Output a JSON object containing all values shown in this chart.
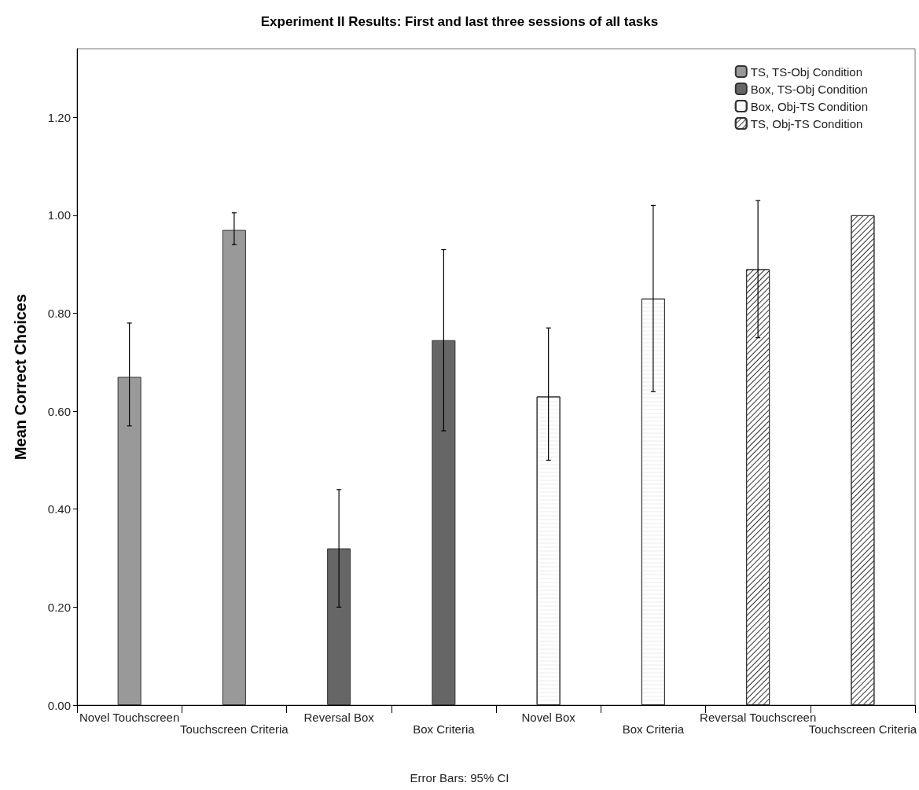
{
  "chart_data": {
    "type": "bar",
    "title": "Experiment II Results: First and last three sessions of all tasks",
    "ylabel": "Mean Correct Choices",
    "categories": [
      "Novel Touchscreen",
      "Touchscreen Criteria",
      "Reversal Box",
      "Box Criteria",
      "Novel Box",
      "Box Criteria",
      "Reversal Touchscreen",
      "Touchscreen Criteria"
    ],
    "series": [
      {
        "name": "TS, TS-Obj Condition",
        "color": "#999999",
        "values": [
          0.67,
          0.97,
          null,
          null,
          null,
          null,
          null,
          null
        ],
        "errors": [
          [
            0.57,
            0.78
          ],
          [
            0.94,
            1.005
          ],
          null,
          null,
          null,
          null,
          null,
          null
        ]
      },
      {
        "name": "Box, TS-Obj Condition",
        "color": "#666666",
        "values": [
          null,
          null,
          0.32,
          0.745,
          null,
          null,
          null,
          null
        ],
        "errors": [
          null,
          null,
          [
            0.2,
            0.44
          ],
          [
            0.56,
            0.93
          ],
          null,
          null,
          null,
          null
        ]
      },
      {
        "name": "Box, Obj-TS Condition",
        "color": "#ffffff",
        "values": [
          null,
          null,
          null,
          null,
          0.63,
          0.83,
          null,
          null
        ],
        "errors": [
          null,
          null,
          null,
          null,
          [
            0.5,
            0.77
          ],
          [
            0.64,
            1.02
          ],
          null,
          null
        ]
      },
      {
        "name": "TS, Obj-TS Condition",
        "color": "#ffffff",
        "values": [
          null,
          null,
          null,
          null,
          null,
          null,
          0.89,
          1.0
        ],
        "errors": [
          null,
          null,
          null,
          null,
          null,
          null,
          [
            0.75,
            1.03
          ],
          null
        ]
      }
    ],
    "ylim": [
      0,
      1.34
    ],
    "yticks": [
      {
        "value": 0,
        "label": "0.00"
      },
      {
        "value": 0.2,
        "label": "0.20"
      },
      {
        "value": 0.4,
        "label": "0.40"
      },
      {
        "value": 0.6,
        "label": "0.60"
      },
      {
        "value": 0.8,
        "label": "0.80"
      },
      {
        "value": 1.0,
        "label": "1.00"
      },
      {
        "value": 1.2,
        "label": "1.20"
      }
    ],
    "grid": false,
    "legend": "top right",
    "annotations": [
      "Error Bars: 95% CI"
    ]
  }
}
